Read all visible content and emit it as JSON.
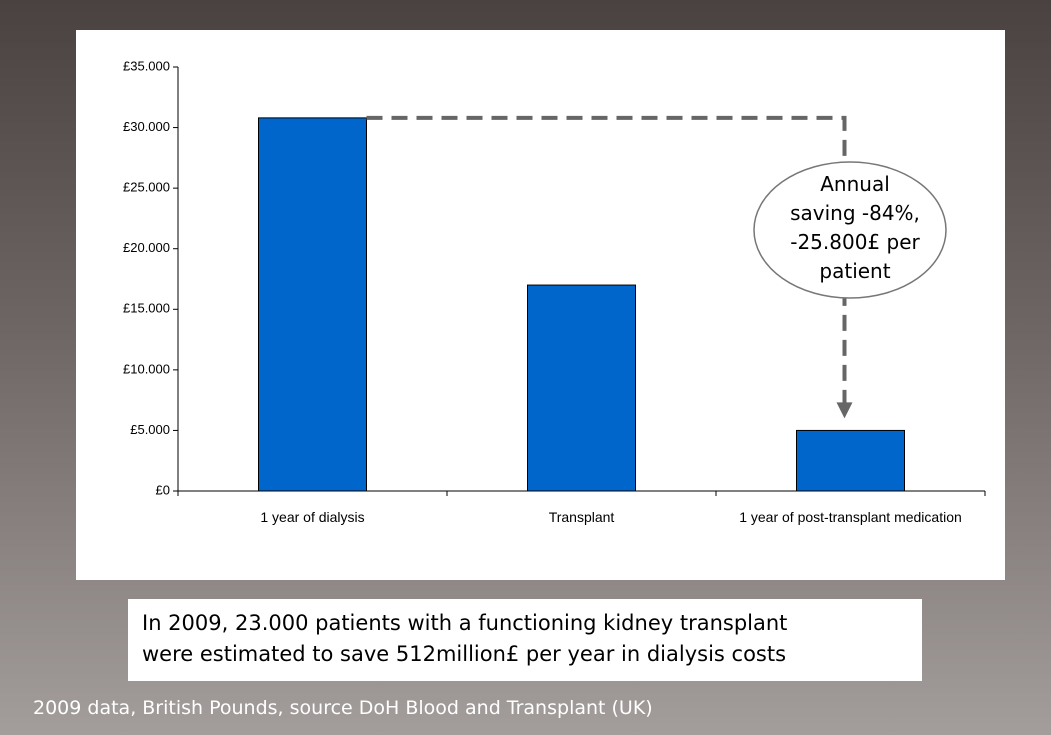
{
  "chart_data": {
    "type": "bar",
    "categories": [
      "1 year of dialysis",
      "Transplant",
      "1 year of post-transplant medication"
    ],
    "values": [
      30800,
      17000,
      5000
    ],
    "color": "#0066cc",
    "ylim": [
      0,
      35000
    ],
    "yticks": [
      {
        "value": 0,
        "label": "£0"
      },
      {
        "value": 5000,
        "label": "£5.000"
      },
      {
        "value": 10000,
        "label": "£10.000"
      },
      {
        "value": 15000,
        "label": "£15.000"
      },
      {
        "value": 20000,
        "label": "£20.000"
      },
      {
        "value": 25000,
        "label": "£25.000"
      },
      {
        "value": 30000,
        "label": "£30.000"
      },
      {
        "value": 35000,
        "label": "£35.000"
      }
    ],
    "annotation": [
      "Annual",
      "saving -84%,",
      "-25.800£ per",
      "patient"
    ]
  },
  "caption": [
    "In 2009, 23.000 patients with a functioning kidney transplant",
    "were estimated to save 512million£ per year in dialysis costs"
  ],
  "footer": "2009 data, British Pounds, source DoH Blood and Transplant (UK)"
}
